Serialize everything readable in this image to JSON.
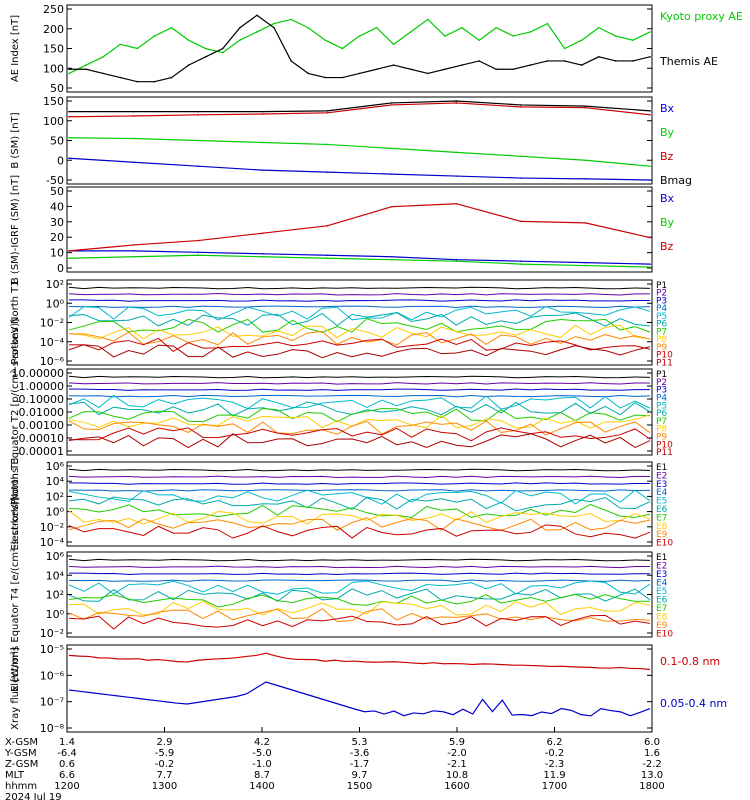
{
  "colors": {
    "black": "#000000",
    "green": "#00cc00",
    "red": "#cc0000",
    "blue": "#0000cc",
    "purple": "#6600aa",
    "cyan": "#00bbcc",
    "teal": "#00aaaa",
    "yellow": "#ffcc00",
    "orange": "#ff8800",
    "lime": "#22cc00"
  },
  "chart_data": [
    {
      "type": "line",
      "ylabel": "AE Index [nT]",
      "ylim": [
        50,
        250
      ],
      "y_ticks": [
        "250",
        "200",
        "150",
        "100",
        "50"
      ],
      "series": [
        {
          "name": "Kyoto proxy AE",
          "color": "#00cc00",
          "values": [
            90,
            110,
            130,
            160,
            150,
            180,
            200,
            170,
            150,
            140,
            170,
            190,
            210,
            220,
            200,
            170,
            150,
            180,
            200,
            160,
            190,
            220,
            180,
            200,
            170,
            200,
            180,
            190,
            210,
            150,
            170,
            200,
            180,
            170,
            190
          ]
        },
        {
          "name": "Themis AE",
          "color": "#000000",
          "values": [
            100,
            100,
            90,
            80,
            70,
            70,
            80,
            110,
            130,
            150,
            200,
            230,
            200,
            120,
            90,
            80,
            80,
            90,
            100,
            110,
            100,
            90,
            100,
            110,
            120,
            100,
            100,
            110,
            120,
            120,
            110,
            130,
            120,
            120,
            130
          ]
        }
      ]
    },
    {
      "type": "line",
      "ylabel": "B (SM) [nT]",
      "ylim": [
        -60,
        150
      ],
      "y_ticks": [
        "150",
        "100",
        "50",
        "0",
        "-50"
      ],
      "series": [
        {
          "name": "Bx",
          "color": "#0000cc",
          "values": [
            0,
            -10,
            -20,
            -30,
            -35,
            -40,
            -45,
            -50,
            -52,
            -55
          ]
        },
        {
          "name": "By",
          "color": "#00cc00",
          "values": [
            52,
            50,
            45,
            40,
            35,
            25,
            15,
            5,
            -5,
            -20
          ]
        },
        {
          "name": "Bz",
          "color": "#cc0000",
          "values": [
            105,
            107,
            110,
            112,
            115,
            135,
            140,
            130,
            128,
            110
          ]
        },
        {
          "name": "Bmag",
          "color": "#000000",
          "values": [
            118,
            118,
            118,
            118,
            120,
            140,
            145,
            135,
            132,
            120
          ]
        }
      ]
    },
    {
      "type": "line",
      "ylabel": "B (SM)-IGRF (SM) [nT]",
      "ylim": [
        -5,
        50
      ],
      "y_ticks": [
        "50",
        "40",
        "30",
        "20",
        "10",
        "0"
      ],
      "series": [
        {
          "name": "Bx",
          "color": "#0000cc",
          "values": [
            8,
            8,
            7,
            6,
            5,
            4,
            2,
            1,
            0,
            -1
          ]
        },
        {
          "name": "By",
          "color": "#00cc00",
          "values": [
            3,
            4,
            5,
            4,
            3,
            2,
            1,
            -1,
            -2,
            -3
          ]
        },
        {
          "name": "Bz",
          "color": "#cc0000",
          "values": [
            8,
            12,
            15,
            20,
            25,
            38,
            40,
            28,
            27,
            17
          ]
        }
      ]
    },
    {
      "type": "line",
      "ylabel": "Protons North T1",
      "y_log": true,
      "y_ticks": [
        "10²",
        "10⁰",
        "10⁻²",
        "10⁻⁴",
        "10⁻⁶"
      ],
      "legend": [
        "P1",
        "P2",
        "P3",
        "P4",
        "P5",
        "P6",
        "P7",
        "P8",
        "P9",
        "P10",
        "P11"
      ]
    },
    {
      "type": "line",
      "ylabel": "Protons Equator T2 [p/(cm²-s-sr-keV)]",
      "y_log": true,
      "y_ticks": [
        "10.00000",
        "1.00000",
        "0.10000",
        "0.01000",
        "0.00100",
        "0.00010",
        "0.00001"
      ],
      "legend": [
        "P1",
        "P2",
        "P3",
        "P4",
        "P5",
        "P6",
        "P7",
        "P8",
        "P9",
        "P10",
        "P11"
      ]
    },
    {
      "type": "line",
      "ylabel": "Electrons North T3",
      "y_log": true,
      "y_ticks": [
        "10⁶",
        "10⁴",
        "10²",
        "10⁰",
        "10⁻²",
        "10⁻⁴"
      ],
      "legend": [
        "E1",
        "E2",
        "E3",
        "E4",
        "E5",
        "E6",
        "E7",
        "E8",
        "E9",
        "E10"
      ]
    },
    {
      "type": "line",
      "ylabel": "Electrons Equator T4 [e/(cm²-s-sr-keV)]",
      "y_log": true,
      "y_ticks": [
        "10⁶",
        "10⁴",
        "10²",
        "10⁰",
        "10⁻²"
      ],
      "legend": [
        "E1",
        "E2",
        "E3",
        "E4",
        "E5",
        "E6",
        "E7",
        "E8",
        "E9",
        "E10"
      ]
    },
    {
      "type": "line",
      "ylabel": "Xray flux [W/m²]",
      "y_log": true,
      "y_ticks": [
        "10⁻⁵",
        "10⁻⁶",
        "10⁻⁷",
        "10⁻⁸"
      ],
      "series": [
        {
          "name": "0.1-0.8 nm",
          "color": "#cc0000"
        },
        {
          "name": "0.05-0.4 nm",
          "color": "#0000cc"
        }
      ]
    }
  ],
  "xaxis": {
    "rows": [
      {
        "label": "X-GSM",
        "values": [
          "1.4",
          "2.9",
          "4.2",
          "5.3",
          "5.9",
          "6.2",
          "6.0"
        ]
      },
      {
        "label": "Y-GSM",
        "values": [
          "-6.4",
          "-5.9",
          "-5.0",
          "-3.6",
          "-2.0",
          "-0.2",
          "1.6"
        ]
      },
      {
        "label": "Z-GSM",
        "values": [
          "0.6",
          "-0.2",
          "-1.0",
          "-1.7",
          "-2.1",
          "-2.3",
          "-2.2"
        ]
      },
      {
        "label": "MLT",
        "values": [
          "6.6",
          "7.7",
          "8.7",
          "9.7",
          "10.8",
          "11.9",
          "13.0"
        ]
      },
      {
        "label": "hhmm",
        "values": [
          "1200",
          "1300",
          "1400",
          "1500",
          "1600",
          "1700",
          "1800"
        ]
      }
    ],
    "date": "2024 Jul 19"
  }
}
